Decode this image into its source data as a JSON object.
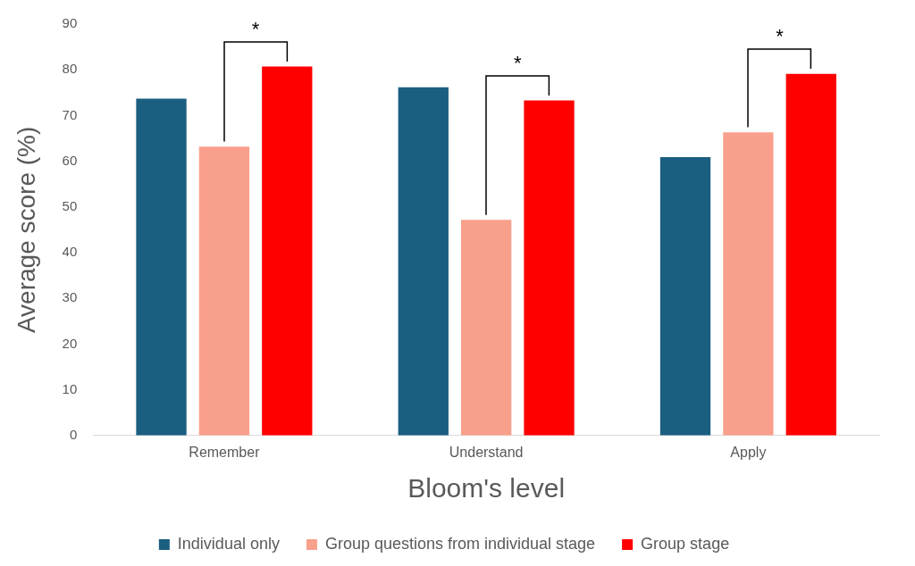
{
  "chart_data": {
    "type": "bar",
    "xlabel": "Bloom's level",
    "ylabel": "Average score (%)",
    "categories": [
      "Remember",
      "Understand",
      "Apply"
    ],
    "series": [
      {
        "name": "Individual only",
        "color": "#1a5e80",
        "values": [
          73.7,
          76.2,
          60.9
        ]
      },
      {
        "name": "Group questions from individual stage",
        "color": "#f8a08c",
        "values": [
          63.2,
          47.2,
          66.3
        ]
      },
      {
        "name": "Group stage",
        "color": "#fe0000",
        "values": [
          80.7,
          73.3,
          79.1
        ]
      }
    ],
    "ylim": [
      0,
      90
    ],
    "yticks": [
      0,
      10,
      20,
      30,
      40,
      50,
      60,
      70,
      80,
      90
    ],
    "grid": false,
    "legend": "bottom",
    "annotations": [
      "*",
      "*",
      "*"
    ]
  }
}
